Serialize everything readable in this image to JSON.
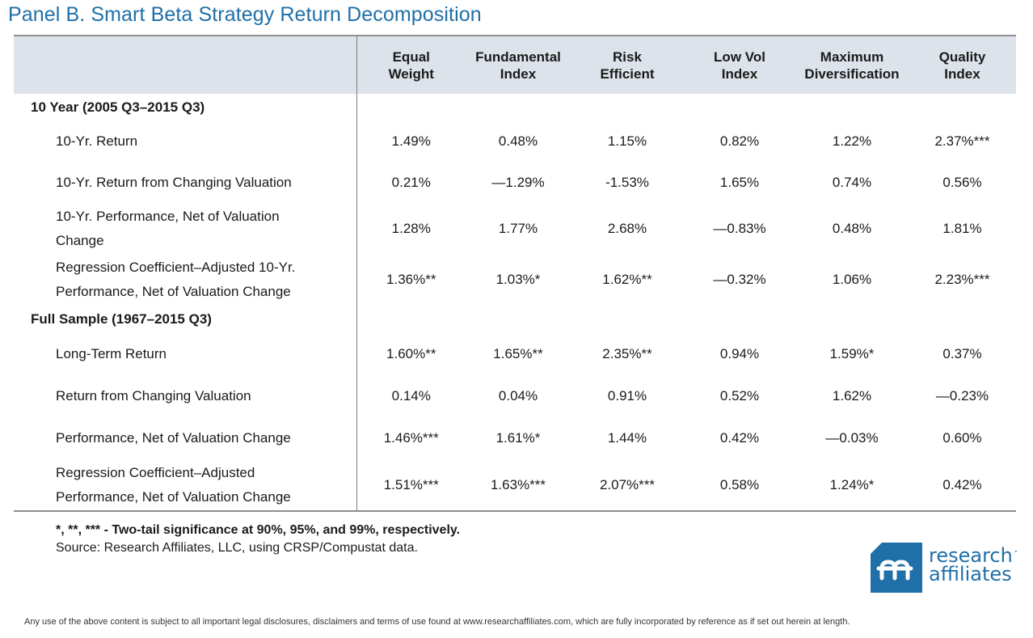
{
  "title": "Panel B. Smart Beta Strategy Return Decomposition",
  "columns": [
    {
      "line1": "Equal",
      "line2": "Weight"
    },
    {
      "line1": "Fundamental",
      "line2": "Index"
    },
    {
      "line1": "Risk",
      "line2": "Efficient"
    },
    {
      "line1": "Low Vol",
      "line2": "Index"
    },
    {
      "line1": "Maximum",
      "line2": "Diversification"
    },
    {
      "line1": "Quality",
      "line2": "Index"
    }
  ],
  "sections": [
    {
      "title": "10 Year (2005 Q3–2015 Q3)",
      "rows": [
        {
          "label1": "10-Yr. Return",
          "label2": "",
          "values": [
            "1.49%",
            "0.48%",
            "1.15%",
            "0.82%",
            "1.22%",
            "2.37%***"
          ]
        },
        {
          "label1": "10-Yr. Return from Changing Valuation",
          "label2": "",
          "values": [
            "0.21%",
            "—1.29%",
            "-1.53%",
            "1.65%",
            "0.74%",
            "0.56%"
          ]
        },
        {
          "label1": "10-Yr. Performance, Net of Valuation",
          "label2": "Change",
          "values": [
            "1.28%",
            "1.77%",
            "2.68%",
            "—0.83%",
            "0.48%",
            "1.81%"
          ]
        },
        {
          "label1": "Regression Coefficient–Adjusted 10-Yr.",
          "label2": "Performance, Net of Valuation Change",
          "values": [
            "1.36%**",
            "1.03%*",
            "1.62%**",
            "—0.32%",
            "1.06%",
            "2.23%***"
          ]
        }
      ]
    },
    {
      "title": "Full Sample (1967–2015 Q3)",
      "rows": [
        {
          "label1": "Long-Term Return",
          "label2": "",
          "values": [
            "1.60%**",
            "1.65%**",
            "2.35%**",
            "0.94%",
            "1.59%*",
            "0.37%"
          ]
        },
        {
          "label1": "Return from Changing Valuation",
          "label2": "",
          "values": [
            "0.14%",
            "0.04%",
            "0.91%",
            "0.52%",
            "1.62%",
            "—0.23%"
          ]
        },
        {
          "label1": "Performance, Net of Valuation Change",
          "label2": "",
          "values": [
            "1.46%***",
            "1.61%*",
            "1.44%",
            "0.42%",
            "—0.03%",
            "0.60%"
          ]
        },
        {
          "label1": "Regression Coefficient–Adjusted",
          "label2": "Performance, Net of Valuation Change",
          "values": [
            "1.51%***",
            "1.63%***",
            "2.07%***",
            "0.58%",
            "1.24%*",
            "0.42%"
          ]
        }
      ]
    }
  ],
  "footnote": {
    "significance": "*, **, *** - Two-tail significance at 90%, 95%, and 99%, respectively.",
    "source": "Source: Research Affiliates, LLC, using CRSP/Compustat data."
  },
  "logo": {
    "line1": "research",
    "line2": "affiliates",
    "tm": "˙",
    "color": "#1f6fa8"
  },
  "disclaimer": "Any use of the above content is subject to all important legal disclosures, disclaimers and terms of use found at www.researchaffiliates.com, which are fully incorporated by reference as if set out herein at length.",
  "colors": {
    "title": "#1f6fa8",
    "header_bg": "#dde3ea",
    "brand": "#1f6fa8"
  }
}
